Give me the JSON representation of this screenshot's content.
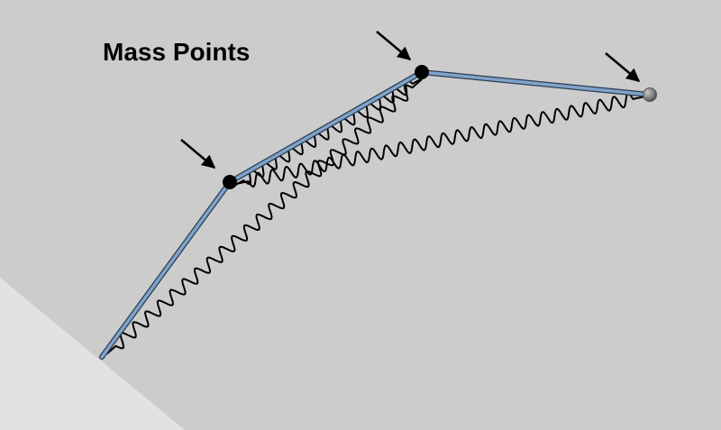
{
  "title": "Mass Points",
  "colors": {
    "background": "#cccccc",
    "ground": "#e2e2e2",
    "rod_fill": "#7fa4cc",
    "rod_edge": "#2d3b4f",
    "spring": "#000000",
    "mass_point": "#000000",
    "end_mass_point": "#808080",
    "arrow": "#000000"
  },
  "icons": {
    "mass_point": "filled-circle",
    "arrow": "diagonal-arrow-down-right"
  }
}
